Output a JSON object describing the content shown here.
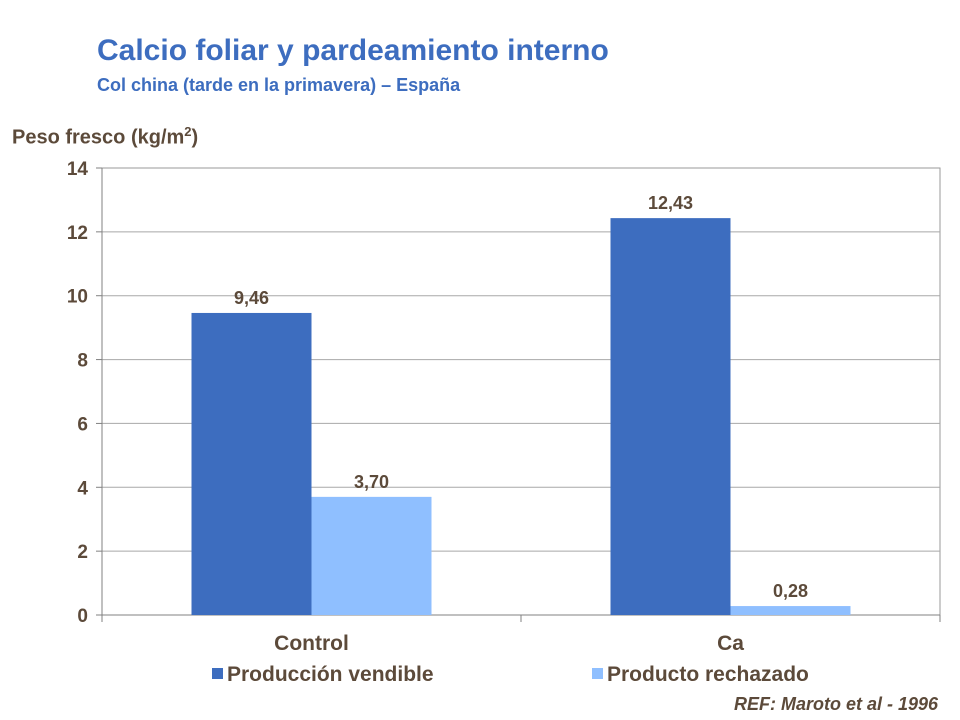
{
  "chart_data": {
    "type": "bar",
    "title": "Calcio foliar y pardeamiento interno",
    "subtitle": "Col china (tarde en la primavera) – España",
    "ylabel_main": "Peso fresco (kg/m",
    "ylabel_sup": "2",
    "ylabel_end": ")",
    "ylim": [
      0,
      14
    ],
    "yticks": [
      0,
      2,
      4,
      6,
      8,
      10,
      12,
      14
    ],
    "grid": true,
    "legend_position": "bottom",
    "categories": [
      "Control",
      "Ca"
    ],
    "series": [
      {
        "name": "Producción vendible",
        "values": [
          9.46,
          12.43
        ],
        "labels": [
          "9,46",
          "12,43"
        ],
        "color": "#3d6dbf"
      },
      {
        "name": "Producto rechazado",
        "values": [
          3.7,
          0.28
        ],
        "labels": [
          "3,70",
          "0,28"
        ],
        "color": "#8fbfff"
      }
    ]
  },
  "reference": "REF: Maroto et al - 1996"
}
